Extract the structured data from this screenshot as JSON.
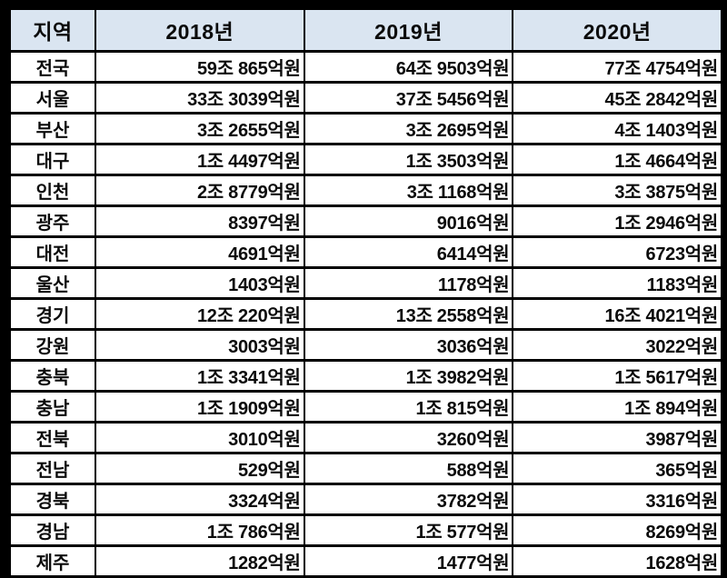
{
  "colors": {
    "frame": "#000000",
    "header_bg": "#dae5f1",
    "row_bg": "#ffffff",
    "text": "#0b0b0b",
    "grid_line": "#000000"
  },
  "chart_data": {
    "type": "table",
    "title": "",
    "columns": [
      "지역",
      "2018년",
      "2019년",
      "2020년"
    ],
    "rows": [
      {
        "region": "전국",
        "values": [
          "59조 865억원",
          "64조 9503억원",
          "77조 4754억원"
        ]
      },
      {
        "region": "서울",
        "values": [
          "33조 3039억원",
          "37조 5456억원",
          "45조 2842억원"
        ]
      },
      {
        "region": "부산",
        "values": [
          "3조 2655억원",
          "3조 2695억원",
          "4조 1403억원"
        ]
      },
      {
        "region": "대구",
        "values": [
          "1조 4497억원",
          "1조 3503억원",
          "1조 4664억원"
        ]
      },
      {
        "region": "인천",
        "values": [
          "2조 8779억원",
          "3조 1168억원",
          "3조 3875억원"
        ]
      },
      {
        "region": "광주",
        "values": [
          "8397억원",
          "9016억원",
          "1조 2946억원"
        ]
      },
      {
        "region": "대전",
        "values": [
          "4691억원",
          "6414억원",
          "6723억원"
        ]
      },
      {
        "region": "울산",
        "values": [
          "1403억원",
          "1178억원",
          "1183억원"
        ]
      },
      {
        "region": "경기",
        "values": [
          "12조 220억원",
          "13조 2558억원",
          "16조 4021억원"
        ]
      },
      {
        "region": "강원",
        "values": [
          "3003억원",
          "3036억원",
          "3022억원"
        ]
      },
      {
        "region": "충북",
        "values": [
          "1조 3341억원",
          "1조 3982억원",
          "1조 5617억원"
        ]
      },
      {
        "region": "충남",
        "values": [
          "1조 1909억원",
          "1조 815억원",
          "1조 894억원"
        ]
      },
      {
        "region": "전북",
        "values": [
          "3010억원",
          "3260억원",
          "3987억원"
        ]
      },
      {
        "region": "전남",
        "values": [
          "529억원",
          "588억원",
          "365억원"
        ]
      },
      {
        "region": "경북",
        "values": [
          "3324억원",
          "3782억원",
          "3316억원"
        ]
      },
      {
        "region": "경남",
        "values": [
          "1조 786억원",
          "1조 577억원",
          "8269억원"
        ]
      },
      {
        "region": "제주",
        "values": [
          "1282억원",
          "1477억원",
          "1628억원"
        ]
      }
    ]
  }
}
